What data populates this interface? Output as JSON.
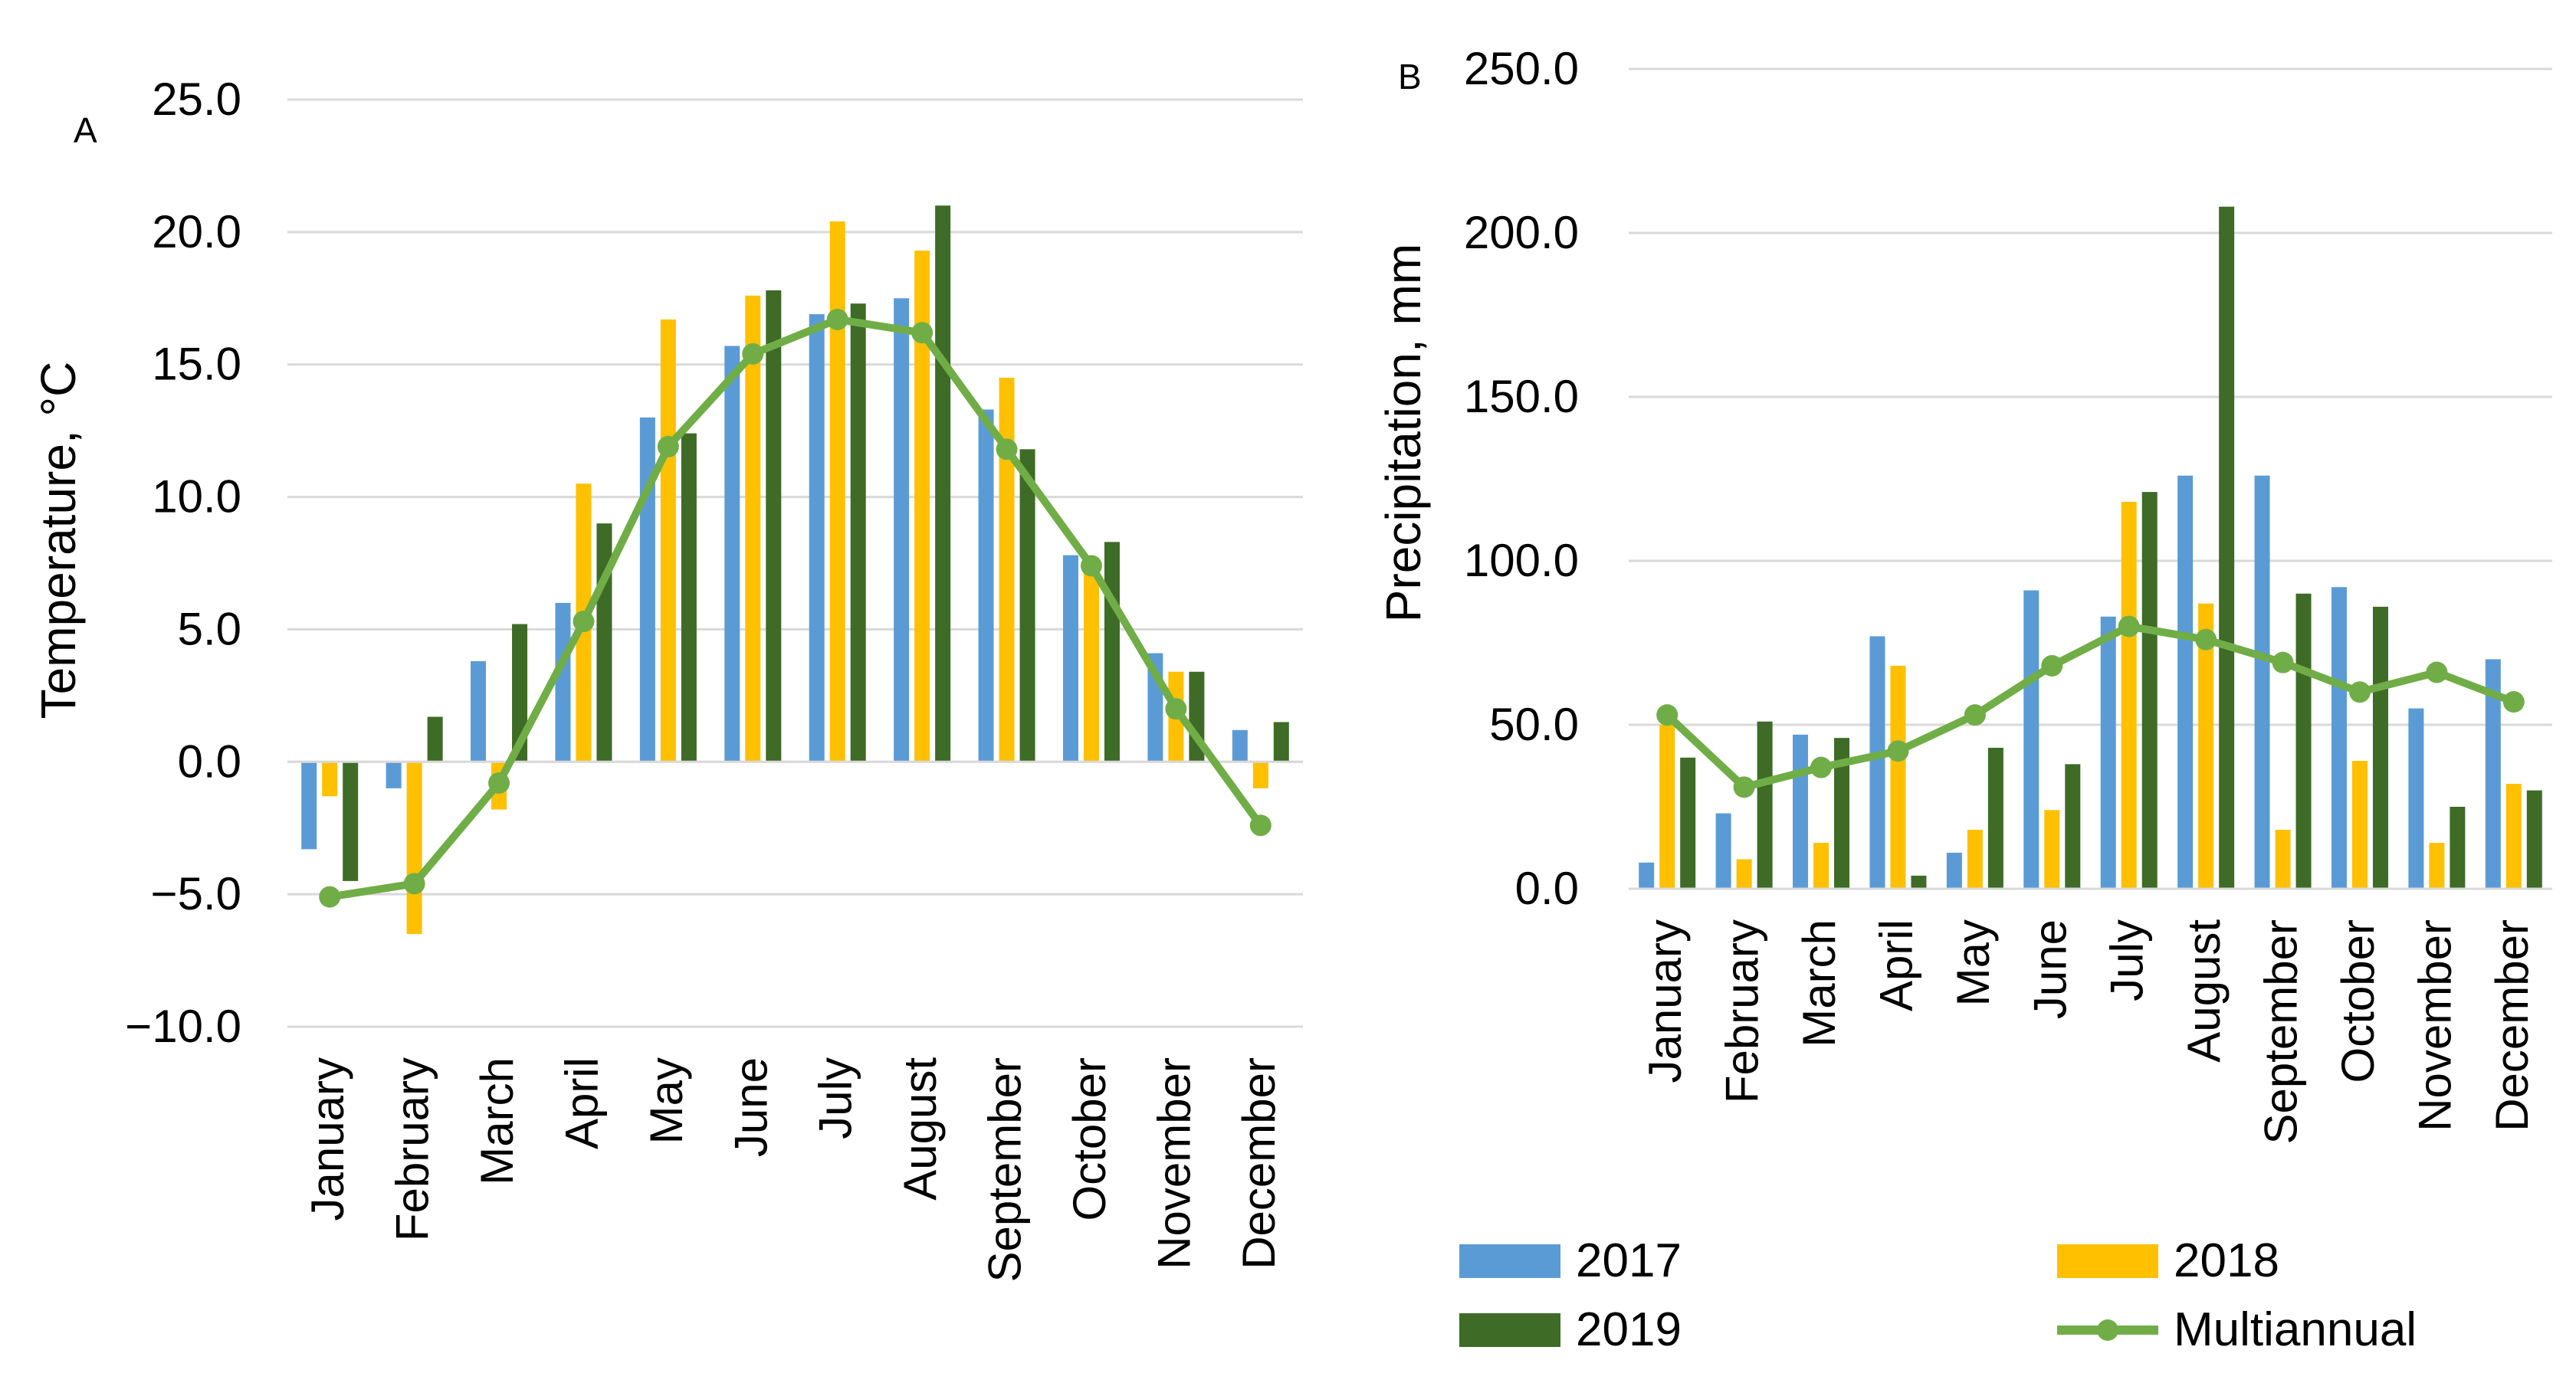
{
  "chart_data": [
    {
      "panel_label": "A",
      "type": "bar",
      "title": "",
      "xlabel": "",
      "ylabel": "Temperature, °C",
      "ylim": [
        -10,
        25
      ],
      "ytick_step": 5,
      "yticks": [
        "25.0",
        "20.0",
        "15.0",
        "10.0",
        "5.0",
        "0.0",
        "−5.0",
        "−10.0"
      ],
      "categories": [
        "January",
        "February",
        "March",
        "April",
        "May",
        "June",
        "July",
        "August",
        "September",
        "October",
        "November",
        "December"
      ],
      "series": [
        {
          "name": "2017",
          "kind": "bar",
          "values": [
            -3.3,
            -1.0,
            3.8,
            6.0,
            13.0,
            15.7,
            16.9,
            17.5,
            13.3,
            7.8,
            4.1,
            1.2
          ]
        },
        {
          "name": "2018",
          "kind": "bar",
          "values": [
            -1.3,
            -6.5,
            -1.8,
            10.5,
            16.7,
            17.6,
            20.4,
            19.3,
            14.5,
            7.4,
            3.4,
            -1.0
          ]
        },
        {
          "name": "2019",
          "kind": "bar",
          "values": [
            -4.5,
            1.7,
            5.2,
            9.0,
            12.4,
            17.8,
            17.3,
            21.0,
            11.8,
            8.3,
            3.4,
            1.5
          ]
        },
        {
          "name": "Multiannual",
          "kind": "line",
          "values": [
            -5.1,
            -4.6,
            -0.8,
            5.3,
            11.9,
            15.4,
            16.7,
            16.2,
            11.8,
            7.4,
            2.0,
            -2.4
          ]
        }
      ],
      "grid": true
    },
    {
      "panel_label": "B",
      "type": "bar",
      "title": "",
      "xlabel": "",
      "ylabel": "Precipitation, mm",
      "ylim": [
        0,
        250
      ],
      "ytick_step": 50,
      "yticks": [
        "250.0",
        "200.0",
        "150.0",
        "100.0",
        "50.0",
        "0.0"
      ],
      "categories": [
        "January",
        "February",
        "March",
        "April",
        "May",
        "June",
        "July",
        "August",
        "September",
        "October",
        "November",
        "December"
      ],
      "series": [
        {
          "name": "2017",
          "kind": "bar",
          "values": [
            8,
            23,
            47,
            77,
            11,
            91,
            83,
            126,
            126,
            92,
            55,
            70
          ]
        },
        {
          "name": "2018",
          "kind": "bar",
          "values": [
            50,
            9,
            14,
            68,
            18,
            24,
            118,
            87,
            18,
            39,
            14,
            32
          ]
        },
        {
          "name": "2019",
          "kind": "bar",
          "values": [
            40,
            51,
            46,
            4,
            43,
            38,
            121,
            208,
            90,
            86,
            25,
            30
          ]
        },
        {
          "name": "Multiannual",
          "kind": "line",
          "values": [
            53,
            31,
            37,
            42,
            53,
            68,
            80,
            76,
            69,
            60,
            66,
            57
          ]
        }
      ],
      "grid": true
    }
  ],
  "legend": {
    "placement": "bottom-right",
    "items": [
      {
        "name": "2017",
        "kind": "bar"
      },
      {
        "name": "2018",
        "kind": "bar"
      },
      {
        "name": "2019",
        "kind": "bar"
      },
      {
        "name": "Multiannual",
        "kind": "line"
      }
    ]
  },
  "colors": {
    "2017": "#5b9bd5",
    "2018": "#ffc000",
    "2019": "#3e6b26",
    "Multiannual": "#70ad47",
    "grid": "#d9d9d9"
  }
}
